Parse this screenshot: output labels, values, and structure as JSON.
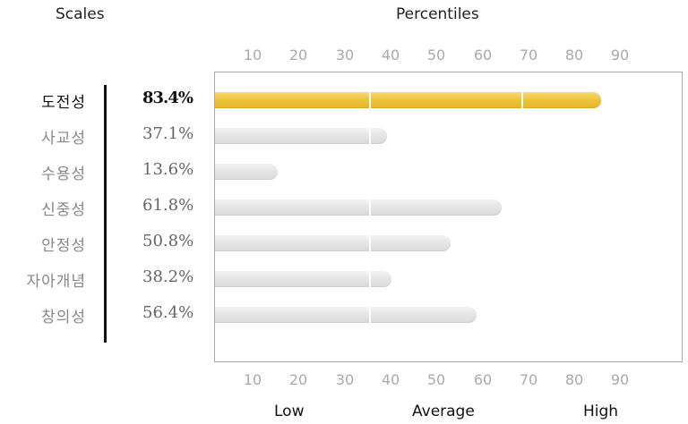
{
  "header": {
    "scales_title": "Scales",
    "percentiles_title": "Percentiles"
  },
  "axis": {
    "ticks": [
      "10",
      "20",
      "30",
      "40",
      "50",
      "60",
      "70",
      "80",
      "90"
    ],
    "bottom_labels": [
      "Low",
      "Average",
      "High"
    ]
  },
  "colors": {
    "highlight": "#efc53a",
    "normal": "#e2e2e2"
  },
  "chart_data": {
    "type": "bar",
    "orientation": "horizontal",
    "categories": [
      "도전성",
      "사교성",
      "수용성",
      "신중성",
      "안정성",
      "자아개념",
      "창의성"
    ],
    "values": [
      83.4,
      37.1,
      13.6,
      61.8,
      50.8,
      38.2,
      56.4
    ],
    "value_labels": [
      "83.4%",
      "37.1%",
      "13.6%",
      "61.8%",
      "50.8%",
      "38.2%",
      "56.4%"
    ],
    "highlighted_index": 0,
    "xlim": [
      0,
      100
    ],
    "grid": false
  }
}
